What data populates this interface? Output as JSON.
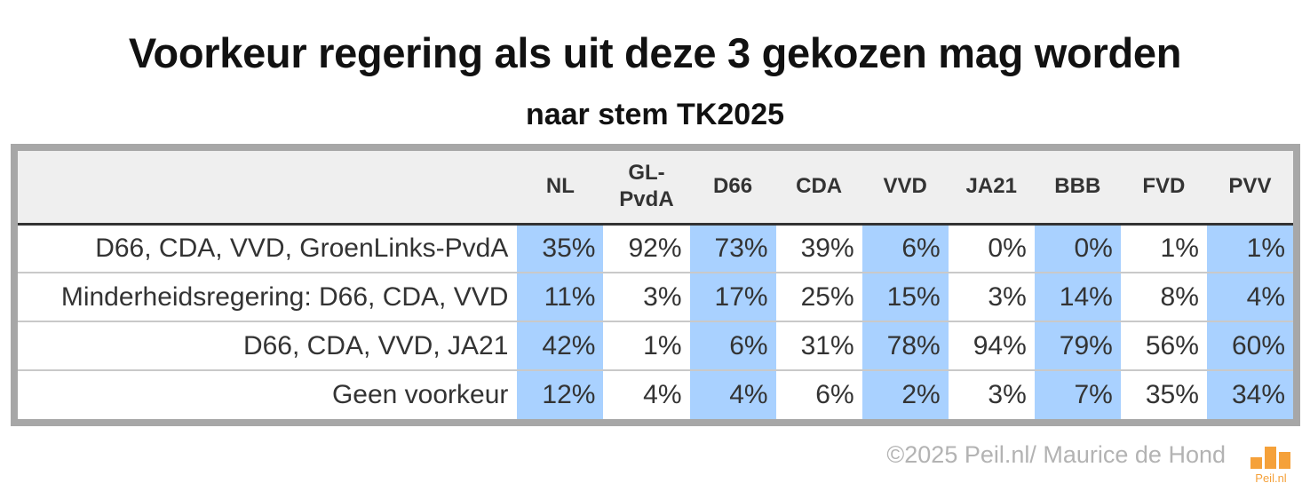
{
  "title": "Voorkeur regering als uit deze 3 gekozen mag worden",
  "subtitle": "naar stem TK2025",
  "chart_data": {
    "type": "table",
    "columns": [
      "NL",
      "GL-PvdA",
      "D66",
      "CDA",
      "VVD",
      "JA21",
      "BBB",
      "FVD",
      "PVV"
    ],
    "highlighted_columns": [
      "NL",
      "D66",
      "VVD",
      "BBB",
      "PVV"
    ],
    "highlight_color": "#a9d1ff",
    "rows": [
      {
        "label": "D66, CDA, VVD, GroenLinks-PvdA",
        "values": [
          "35%",
          "92%",
          "73%",
          "39%",
          "6%",
          "0%",
          "0%",
          "1%",
          "1%"
        ]
      },
      {
        "label": "Minderheidsregering: D66, CDA, VVD",
        "values": [
          "11%",
          "3%",
          "17%",
          "25%",
          "15%",
          "3%",
          "14%",
          "8%",
          "4%"
        ]
      },
      {
        "label": "D66, CDA, VVD, JA21",
        "values": [
          "42%",
          "1%",
          "6%",
          "31%",
          "78%",
          "94%",
          "79%",
          "56%",
          "60%"
        ]
      },
      {
        "label": "Geen voorkeur",
        "values": [
          "12%",
          "4%",
          "4%",
          "6%",
          "2%",
          "3%",
          "7%",
          "35%",
          "34%"
        ]
      }
    ]
  },
  "footer": {
    "copyright": "©2025 Peil.nl/ Maurice de Hond",
    "logo_text": "Peil.nl",
    "logo_color": "#f5a13a"
  }
}
